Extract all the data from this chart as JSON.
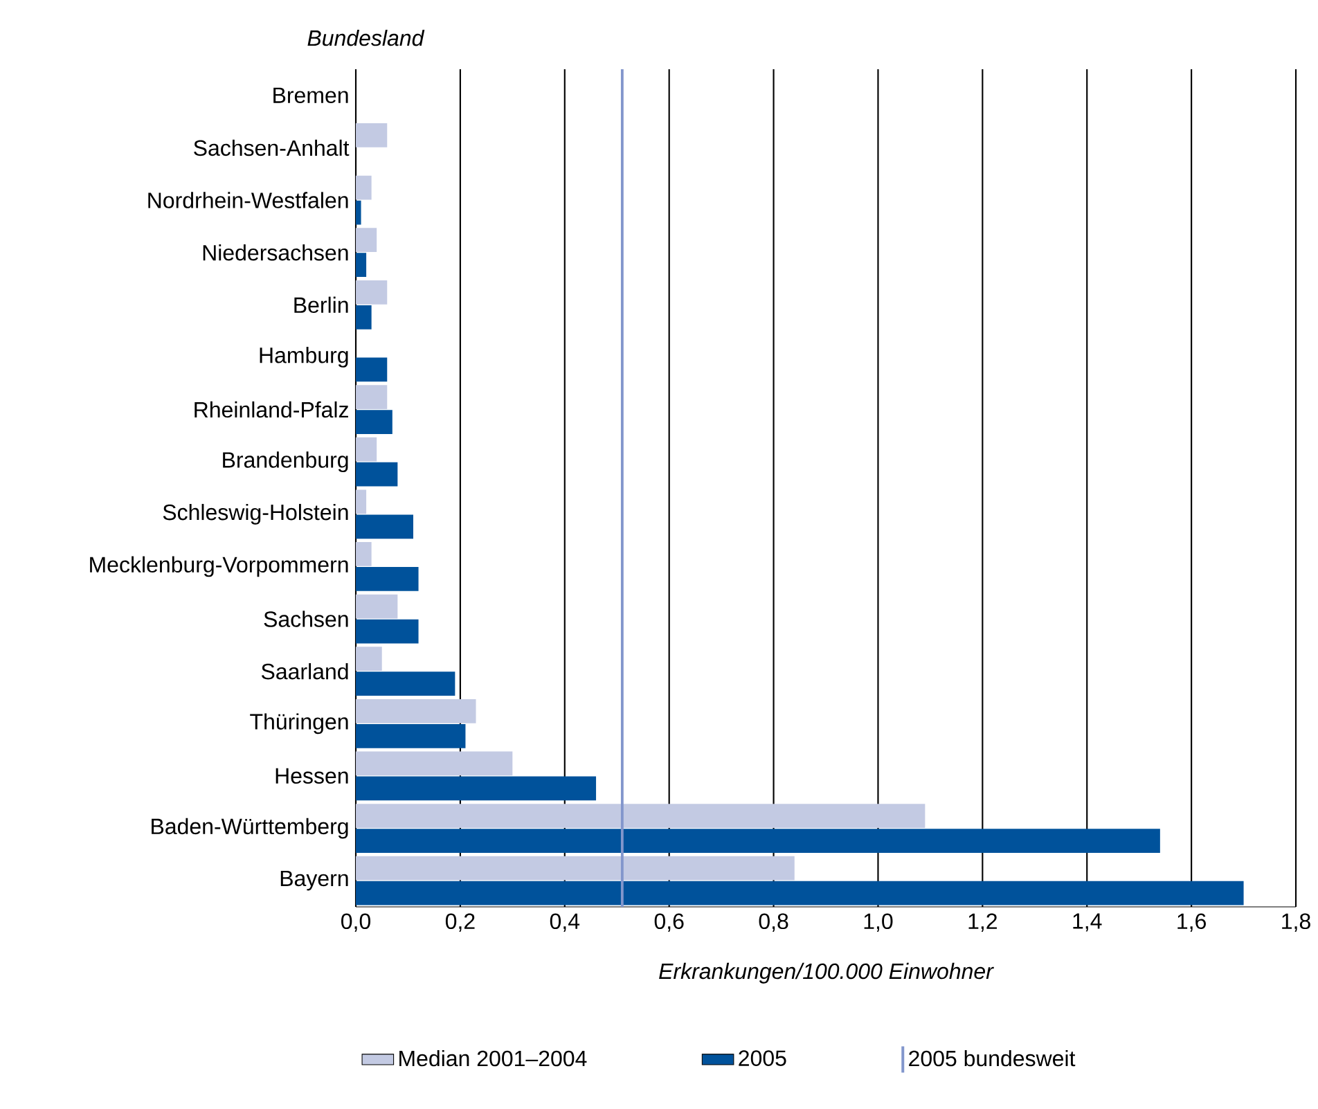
{
  "chart_data": {
    "type": "bar",
    "orientation": "horizontal",
    "ylabel": "Bundesland",
    "xlabel": "Erkrankungen/100.000 Einwohner",
    "categories": [
      "Bremen",
      "Sachsen-Anhalt",
      "Nordrhein-Westfalen",
      "Niedersachsen",
      "Berlin",
      "Hamburg",
      "Rheinland-Pfalz",
      "Brandenburg",
      "Schleswig-Holstein",
      "Mecklenburg-Vorpommern",
      "Sachsen",
      "Saarland",
      "Thüringen",
      "Hessen",
      "Baden-Württemberg",
      "Bayern"
    ],
    "series": [
      {
        "name": "Median 2001–2004",
        "color": "#c3cae3",
        "values": [
          0,
          0.06,
          0.03,
          0.04,
          0.06,
          0,
          0.06,
          0.04,
          0.02,
          0.03,
          0.08,
          0.05,
          0.23,
          0.3,
          1.09,
          0.84
        ]
      },
      {
        "name": "2005",
        "color": "#00529b",
        "values": [
          0,
          0,
          0.01,
          0.02,
          0.03,
          0.06,
          0.07,
          0.08,
          0.11,
          0.12,
          0.12,
          0.19,
          0.21,
          0.46,
          1.54,
          1.7
        ]
      }
    ],
    "ref_lines": [
      {
        "axis": "x",
        "value": 0.51,
        "label": "2005 bundesweit",
        "color": "#8296cc"
      }
    ],
    "xlim": [
      0,
      1.8
    ],
    "xticks": [
      {
        "value": 0,
        "label": "0,0"
      },
      {
        "value": 0.2,
        "label": "0,2"
      },
      {
        "value": 0.4,
        "label": "0,4"
      },
      {
        "value": 0.6,
        "label": "0,6"
      },
      {
        "value": 0.8,
        "label": "0,8"
      },
      {
        "value": 1.0,
        "label": "1,0"
      },
      {
        "value": 1.2,
        "label": "1,2"
      },
      {
        "value": 1.4,
        "label": "1,4"
      },
      {
        "value": 1.6,
        "label": "1,6"
      },
      {
        "value": 1.8,
        "label": "1,8"
      }
    ],
    "grid": "x",
    "legend": "bottom"
  }
}
